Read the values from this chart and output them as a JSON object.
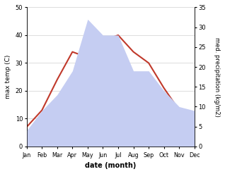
{
  "months": [
    "Jan",
    "Feb",
    "Mar",
    "Apr",
    "May",
    "Jun",
    "Jul",
    "Aug",
    "Sep",
    "Oct",
    "Nov",
    "Dec"
  ],
  "x": [
    1,
    2,
    3,
    4,
    5,
    6,
    7,
    8,
    9,
    10,
    11,
    12
  ],
  "temperature": [
    7,
    13,
    24,
    34,
    32,
    38,
    40,
    34,
    30,
    21,
    13,
    10
  ],
  "precipitation": [
    4,
    9,
    13,
    19,
    32,
    28,
    28,
    19,
    19,
    14,
    10,
    9
  ],
  "temp_color": "#c0392b",
  "precip_fill_color": "#c5cdf2",
  "temp_ylim": [
    0,
    50
  ],
  "precip_ylim": [
    0,
    35
  ],
  "temp_yticks": [
    0,
    10,
    20,
    30,
    40,
    50
  ],
  "precip_yticks": [
    0,
    5,
    10,
    15,
    20,
    25,
    30,
    35
  ],
  "xlabel": "date (month)",
  "ylabel_left": "max temp (C)",
  "ylabel_right": "med. precipitation (kg/m2)",
  "bg_color": "#ffffff",
  "grid_color": "#d0d0d0"
}
